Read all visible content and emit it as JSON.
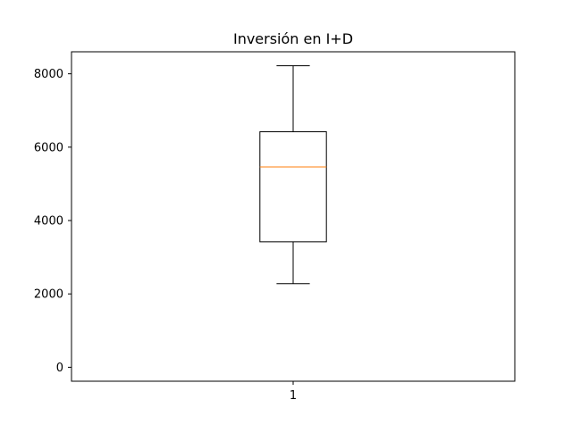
{
  "chart_data": {
    "type": "box",
    "title": "Inversión en I+D",
    "xlabel": "",
    "ylabel": "",
    "categories": [
      "1"
    ],
    "boxes": [
      {
        "category": "1",
        "whisker_low": 2280,
        "q1": 3420,
        "median": 5460,
        "q3": 6420,
        "whisker_high": 8220
      }
    ],
    "yticks": [
      0,
      2000,
      4000,
      6000,
      8000
    ],
    "ylim": [
      -380,
      8600
    ],
    "grid": false,
    "colors": {
      "box": "#000000",
      "median": "#ff7f0e",
      "axes": "#000000",
      "background": "#ffffff"
    }
  }
}
